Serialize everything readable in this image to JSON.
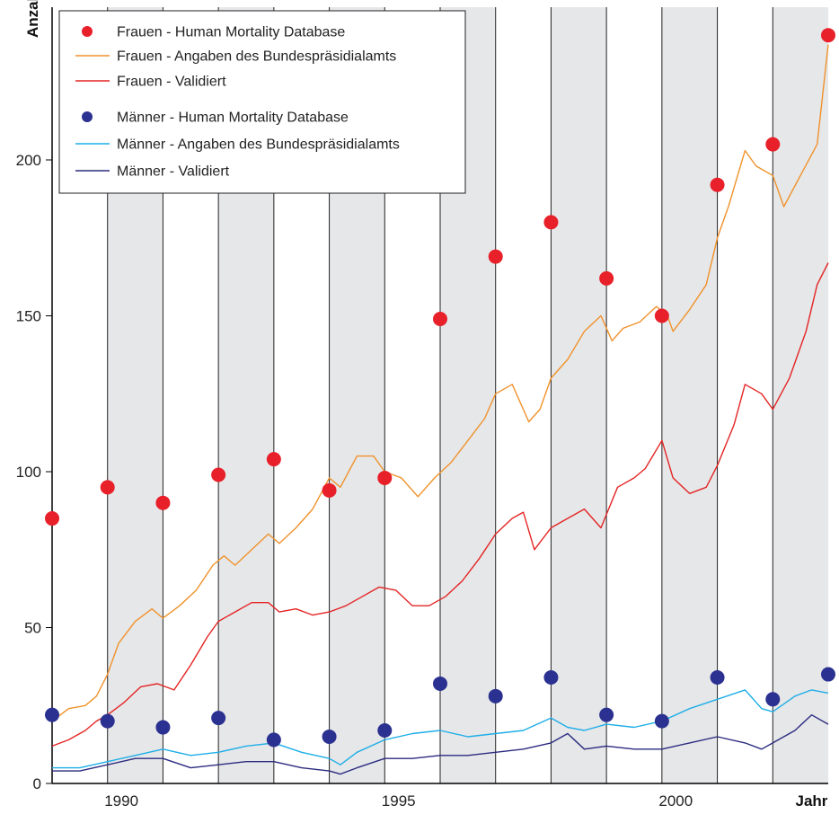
{
  "chart_data": {
    "type": "line",
    "ylabel": "Anzahl",
    "xlabel": "Jahr",
    "xlim": [
      1988,
      2002
    ],
    "ylim": [
      0,
      240
    ],
    "yticks": [
      0,
      50,
      100,
      150,
      200
    ],
    "xtick_labels": [
      {
        "x": 1989.25,
        "label": "1990"
      },
      {
        "x": 1994.25,
        "label": "1995"
      },
      {
        "x": 1999.25,
        "label": "2000"
      },
      {
        "x": 2001.7,
        "label": "Jahr"
      }
    ],
    "grid_lines": [
      1989,
      1990,
      1991,
      1992,
      1993,
      1994,
      1995,
      1996,
      1997,
      1998,
      1999,
      2000,
      2001
    ],
    "legend_position": "top-left",
    "series": [
      {
        "name": "Frauen - Human Mortality Database",
        "kind": "points",
        "color": "#e8202a",
        "x": [
          1988,
          1989,
          1990,
          1991,
          1992,
          1993,
          1994,
          1995,
          1996,
          1997,
          1998,
          1999,
          2000,
          2001,
          2002
        ],
        "values": [
          85,
          95,
          90,
          99,
          104,
          94,
          98,
          149,
          169,
          180,
          162,
          150,
          192,
          205,
          240
        ]
      },
      {
        "name": "Frauen - Angaben des Bundespräsidialamts",
        "kind": "line",
        "color": "#f0922b",
        "x": [
          1988,
          1988.3,
          1988.6,
          1988.8,
          1989,
          1989.2,
          1989.5,
          1989.8,
          1990,
          1990.3,
          1990.6,
          1990.9,
          1991.1,
          1991.3,
          1991.6,
          1991.9,
          1992.1,
          1992.4,
          1992.7,
          1993,
          1993.2,
          1993.5,
          1993.8,
          1994,
          1994.3,
          1994.6,
          1994.9,
          1995.2,
          1995.5,
          1995.8,
          1996,
          1996.3,
          1996.6,
          1996.8,
          1997,
          1997.3,
          1997.6,
          1997.9,
          1998.1,
          1998.3,
          1998.6,
          1998.9,
          1999.1,
          1999.2,
          1999.5,
          1999.8,
          2000,
          2000.2,
          2000.5,
          2000.7,
          2001,
          2001.2,
          2001.5,
          2001.8,
          2002
        ],
        "values": [
          20,
          24,
          25,
          28,
          35,
          45,
          52,
          56,
          53,
          57,
          62,
          70,
          73,
          70,
          75,
          80,
          77,
          82,
          88,
          98,
          95,
          105,
          105,
          100,
          98,
          92,
          98,
          103,
          110,
          117,
          125,
          128,
          116,
          120,
          130,
          136,
          145,
          150,
          142,
          146,
          148,
          153,
          150,
          145,
          152,
          160,
          175,
          185,
          203,
          198,
          195,
          185,
          195,
          205,
          237
        ]
      },
      {
        "name": "Frauen - Validiert",
        "kind": "line",
        "color": "#e42424",
        "x": [
          1988,
          1988.3,
          1988.6,
          1988.8,
          1989,
          1989.3,
          1989.6,
          1989.9,
          1990.2,
          1990.5,
          1990.8,
          1991,
          1991.3,
          1991.6,
          1991.9,
          1992.1,
          1992.4,
          1992.7,
          1993,
          1993.3,
          1993.6,
          1993.9,
          1994.2,
          1994.5,
          1994.8,
          1995.1,
          1995.4,
          1995.7,
          1996,
          1996.3,
          1996.5,
          1996.7,
          1997,
          1997.3,
          1997.6,
          1997.9,
          1998.2,
          1998.5,
          1998.7,
          1999,
          1999.2,
          1999.5,
          1999.8,
          2000,
          2000.3,
          2000.5,
          2000.8,
          2001,
          2001.3,
          2001.6,
          2001.8,
          2002
        ],
        "values": [
          12,
          14,
          17,
          20,
          22,
          26,
          31,
          32,
          30,
          38,
          47,
          52,
          55,
          58,
          58,
          55,
          56,
          54,
          55,
          57,
          60,
          63,
          62,
          57,
          57,
          60,
          65,
          72,
          80,
          85,
          87,
          75,
          82,
          85,
          88,
          82,
          95,
          98,
          101,
          110,
          98,
          93,
          95,
          102,
          115,
          128,
          125,
          120,
          130,
          145,
          160,
          167
        ]
      },
      {
        "name": "Männer - Human Mortality Database",
        "kind": "points",
        "color": "#2b3190",
        "x": [
          1988,
          1989,
          1990,
          1991,
          1992,
          1993,
          1994,
          1995,
          1996,
          1997,
          1998,
          1999,
          2000,
          2001,
          2002
        ],
        "values": [
          22,
          20,
          18,
          21,
          14,
          15,
          17,
          32,
          28,
          34,
          22,
          20,
          34,
          27,
          35
        ]
      },
      {
        "name": "Männer - Angaben des Bundespräsidialamts",
        "kind": "line",
        "color": "#1eaee8",
        "x": [
          1988,
          1988.5,
          1989,
          1989.5,
          1990,
          1990.5,
          1991,
          1991.5,
          1992,
          1992.5,
          1993,
          1993.2,
          1993.5,
          1994,
          1994.5,
          1995,
          1995.5,
          1996,
          1996.5,
          1997,
          1997.3,
          1997.6,
          1998,
          1998.5,
          1999,
          1999.5,
          2000,
          2000.5,
          2000.8,
          2001,
          2001.4,
          2001.7,
          2002
        ],
        "values": [
          5,
          5,
          7,
          9,
          11,
          9,
          10,
          12,
          13,
          10,
          8,
          6,
          10,
          14,
          16,
          17,
          15,
          16,
          17,
          21,
          18,
          17,
          19,
          18,
          20,
          24,
          27,
          30,
          24,
          23,
          28,
          30,
          29
        ]
      },
      {
        "name": "Männer - Validiert",
        "kind": "line",
        "color": "#2b2b80",
        "x": [
          1988,
          1988.5,
          1989,
          1989.5,
          1990,
          1990.5,
          1991,
          1991.5,
          1992,
          1992.5,
          1993,
          1993.2,
          1993.5,
          1994,
          1994.5,
          1995,
          1995.5,
          1996,
          1996.5,
          1997,
          1997.3,
          1997.6,
          1998,
          1998.5,
          1999,
          1999.5,
          2000,
          2000.5,
          2000.8,
          2001,
          2001.4,
          2001.7,
          2002
        ],
        "values": [
          4,
          4,
          6,
          8,
          8,
          5,
          6,
          7,
          7,
          5,
          4,
          3,
          5,
          8,
          8,
          9,
          9,
          10,
          11,
          13,
          16,
          11,
          12,
          11,
          11,
          13,
          15,
          13,
          11,
          13,
          17,
          22,
          19
        ]
      }
    ]
  }
}
